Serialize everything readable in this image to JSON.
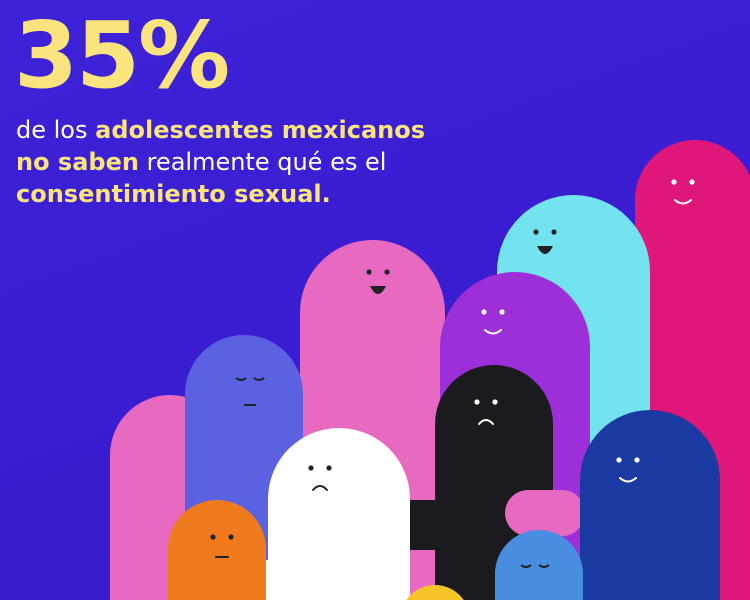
{
  "headline": {
    "figure": "35%",
    "lines": [
      [
        {
          "text": "de los "
        },
        {
          "text": "adolescentes mexicanos",
          "bold": true
        }
      ],
      [
        {
          "text": "no saben",
          "bold": true
        },
        {
          "text": " realmente qué es el"
        }
      ],
      [
        {
          "text": "consentimiento sexual.",
          "bold": true
        }
      ]
    ]
  }
}
